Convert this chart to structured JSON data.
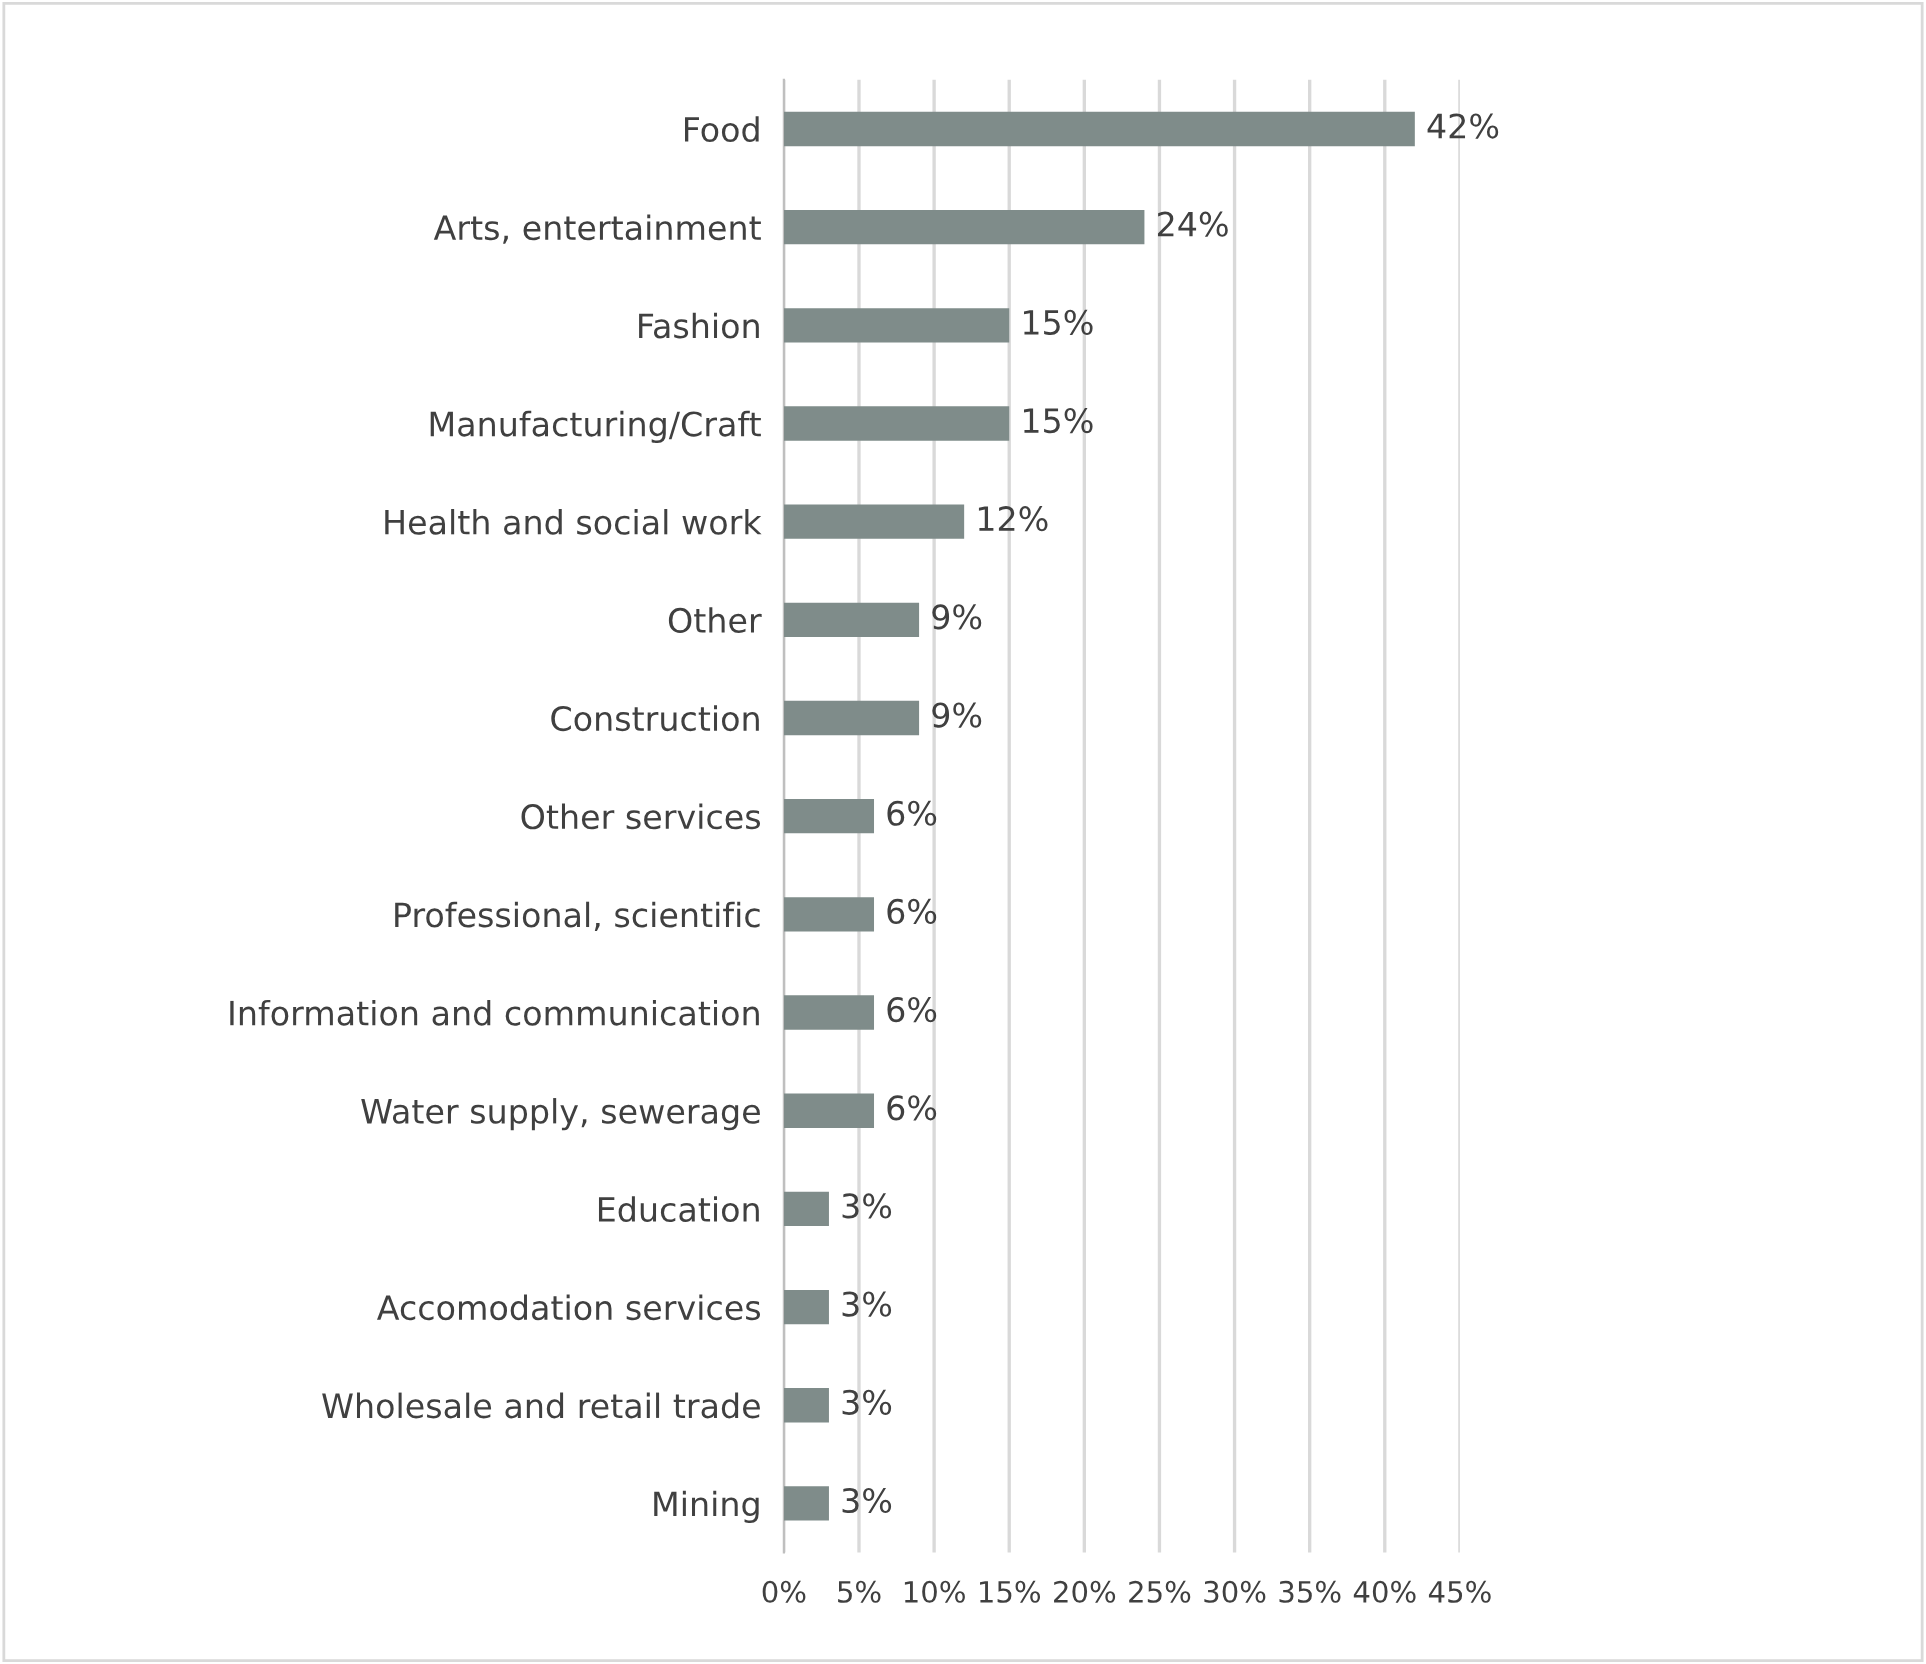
{
  "chart_data": {
    "type": "bar",
    "orientation": "horizontal",
    "categories": [
      "Food",
      "Arts, entertainment",
      "Fashion",
      "Manufacturing/Craft",
      "Health and social work",
      "Other",
      "Construction",
      "Other services",
      "Professional, scientific",
      "Information and communication",
      "Water supply, sewerage",
      "Education",
      "Accomodation services",
      "Wholesale and retail trade",
      "Mining"
    ],
    "values": [
      42,
      24,
      15,
      15,
      12,
      9,
      9,
      6,
      6,
      6,
      6,
      3,
      3,
      3,
      3
    ],
    "value_labels": [
      "42%",
      "24%",
      "15%",
      "15%",
      "12%",
      "9%",
      "9%",
      "6%",
      "6%",
      "6%",
      "6%",
      "3%",
      "3%",
      "3%",
      "3%"
    ],
    "color": "#7f8c8a",
    "xlim": [
      0,
      45
    ],
    "xticks": [
      {
        "value": 0,
        "label": "0%"
      },
      {
        "value": 5,
        "label": "5%"
      },
      {
        "value": 10,
        "label": "10%"
      },
      {
        "value": 15,
        "label": "15%"
      },
      {
        "value": 20,
        "label": "20%"
      },
      {
        "value": 25,
        "label": "25%"
      },
      {
        "value": 30,
        "label": "30%"
      },
      {
        "value": 35,
        "label": "35%"
      },
      {
        "value": 40,
        "label": "40%"
      },
      {
        "value": 45,
        "label": "45%"
      }
    ],
    "grid": "x",
    "legend": false
  }
}
